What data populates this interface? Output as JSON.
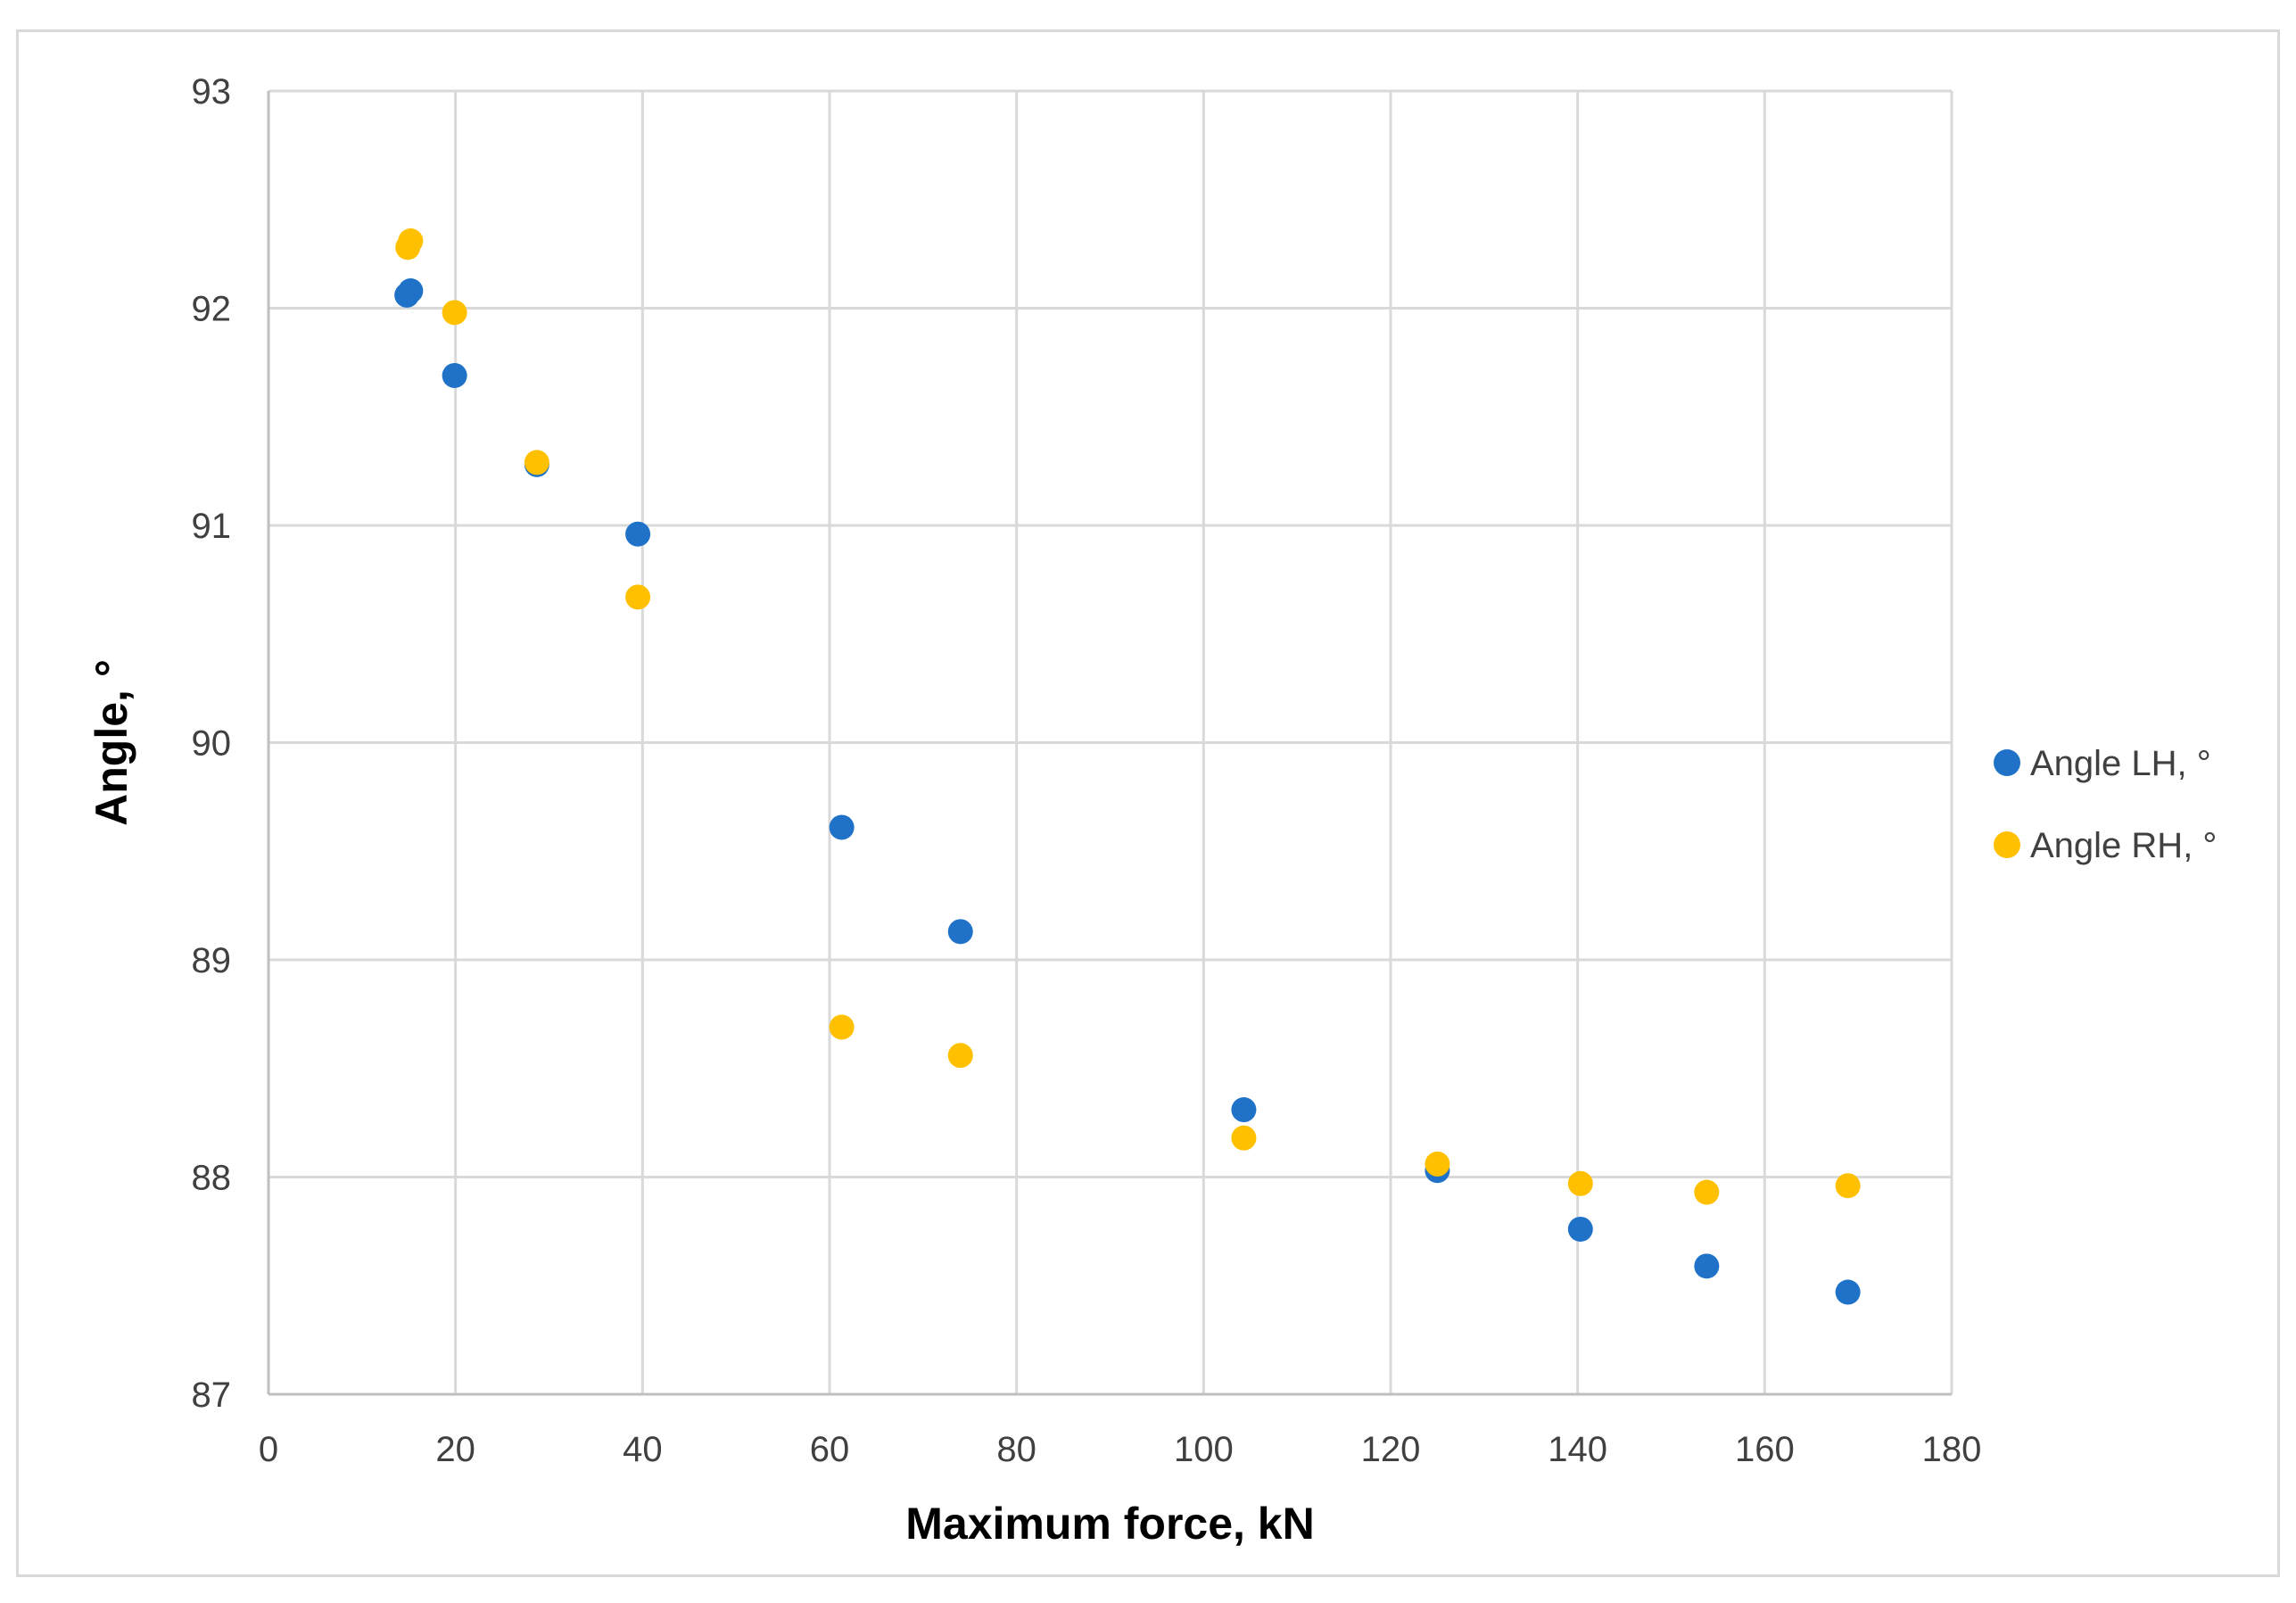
{
  "chart_data": {
    "type": "scatter",
    "xlabel": "Maximum force, kN",
    "ylabel": "Angle, °",
    "xlim": [
      0,
      180
    ],
    "ylim": [
      87,
      93
    ],
    "x_ticks": [
      0,
      20,
      40,
      60,
      80,
      100,
      120,
      140,
      160,
      180
    ],
    "y_ticks": [
      87,
      88,
      89,
      90,
      91,
      92,
      93
    ],
    "grid": true,
    "legend_position": "right",
    "series": [
      {
        "name": "Angle LH, °",
        "color": "#1f72c8",
        "points": [
          {
            "x": 14.8,
            "y": 92.06
          },
          {
            "x": 15.2,
            "y": 92.08
          },
          {
            "x": 19.9,
            "y": 91.69
          },
          {
            "x": 28.7,
            "y": 91.28
          },
          {
            "x": 39.5,
            "y": 90.96
          },
          {
            "x": 61.3,
            "y": 89.61
          },
          {
            "x": 74.0,
            "y": 89.13
          },
          {
            "x": 104.3,
            "y": 88.31
          },
          {
            "x": 125.0,
            "y": 88.03
          },
          {
            "x": 140.3,
            "y": 87.76
          },
          {
            "x": 153.8,
            "y": 87.59
          },
          {
            "x": 168.9,
            "y": 87.47
          }
        ]
      },
      {
        "name": "Angle RH, °",
        "color": "#ffc000",
        "points": [
          {
            "x": 14.9,
            "y": 92.28
          },
          {
            "x": 15.2,
            "y": 92.31
          },
          {
            "x": 19.9,
            "y": 91.98
          },
          {
            "x": 28.7,
            "y": 91.29
          },
          {
            "x": 39.5,
            "y": 90.67
          },
          {
            "x": 61.3,
            "y": 88.69
          },
          {
            "x": 74.0,
            "y": 88.56
          },
          {
            "x": 104.3,
            "y": 88.18
          },
          {
            "x": 125.0,
            "y": 88.06
          },
          {
            "x": 140.3,
            "y": 87.97
          },
          {
            "x": 153.8,
            "y": 87.93
          },
          {
            "x": 168.9,
            "y": 87.96
          }
        ]
      }
    ]
  }
}
